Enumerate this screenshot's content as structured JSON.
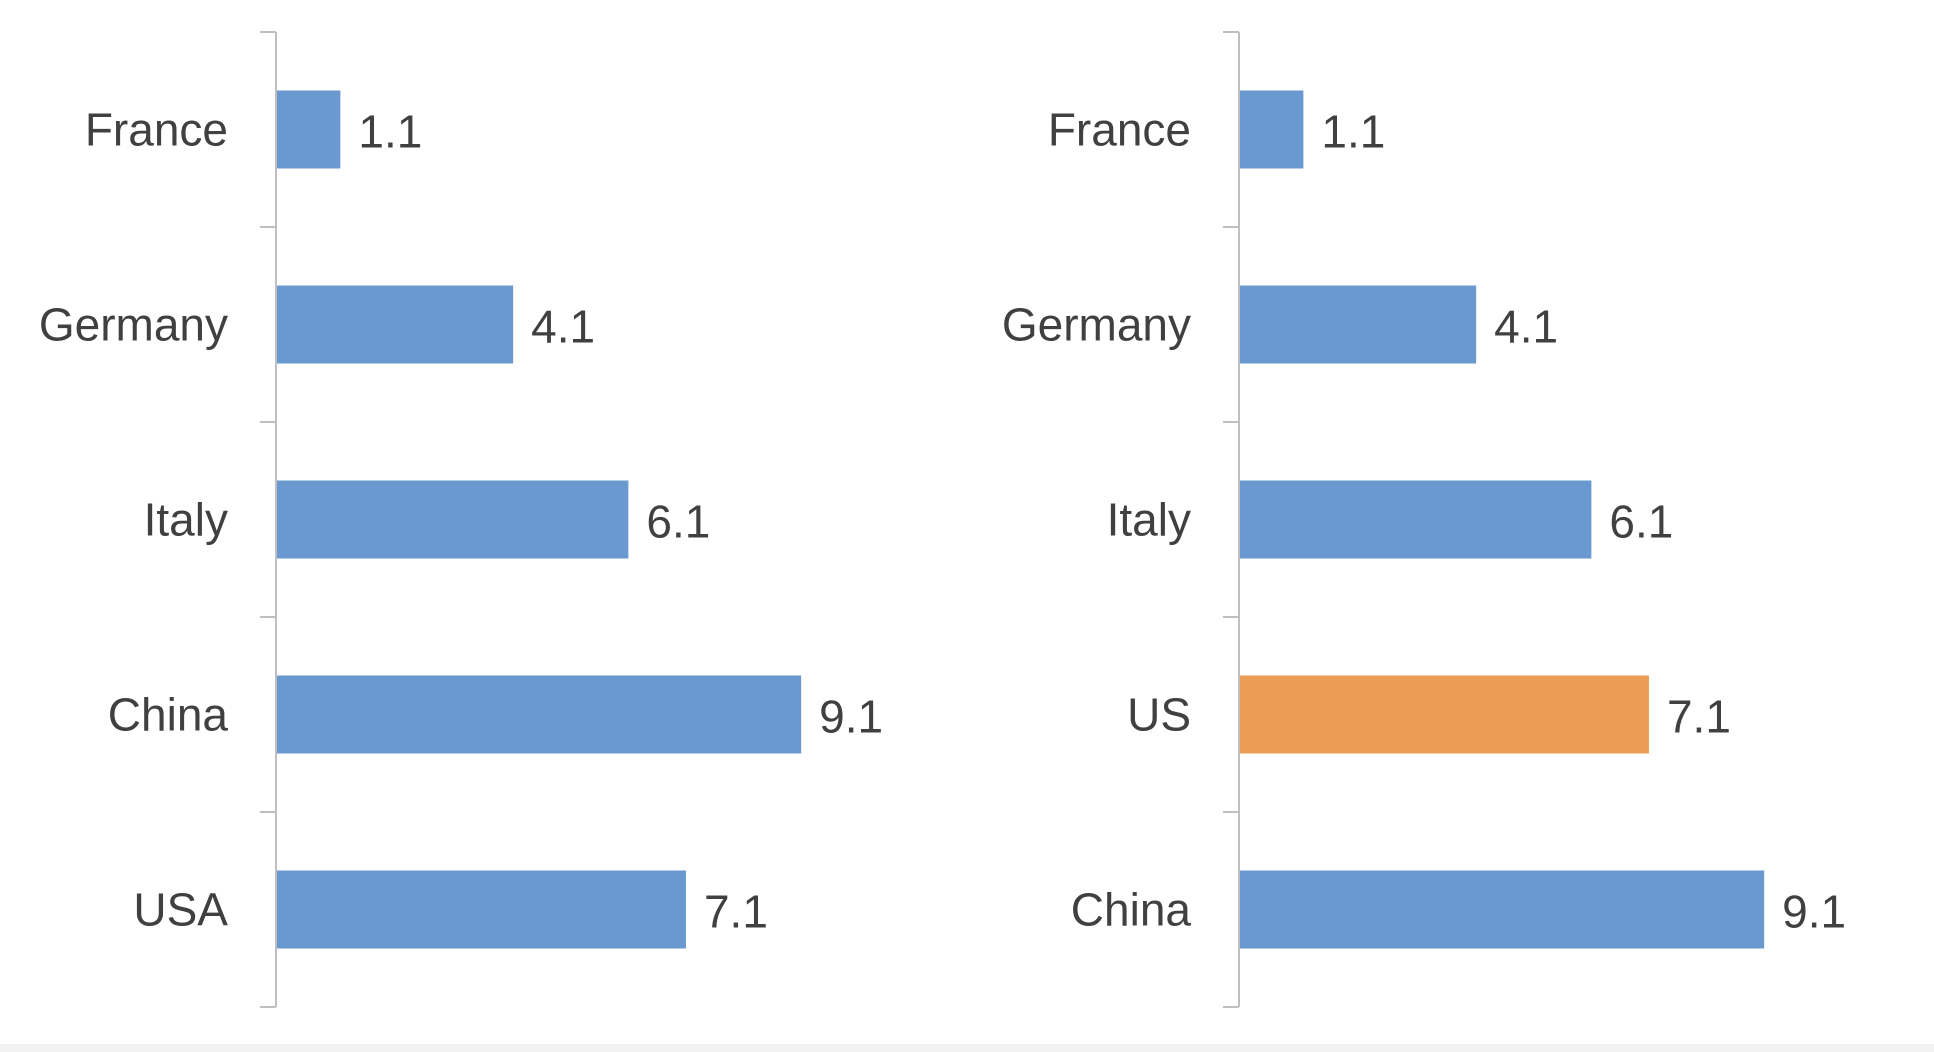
{
  "chart_data": [
    {
      "type": "bar",
      "orientation": "horizontal",
      "categories": [
        "France",
        "Germany",
        "Italy",
        "China",
        "USA"
      ],
      "values": [
        1.1,
        4.1,
        6.1,
        9.1,
        7.1
      ],
      "data_labels": [
        "1.1",
        "4.1",
        "6.1",
        "9.1",
        "7.1"
      ],
      "bar_colors": [
        "#6a99d0",
        "#6a99d0",
        "#6a99d0",
        "#6a99d0",
        "#6a99d0"
      ],
      "xlim": [
        0,
        10
      ],
      "grid": false,
      "legend": "none"
    },
    {
      "type": "bar",
      "orientation": "horizontal",
      "categories": [
        "France",
        "Germany",
        "Italy",
        "US",
        "China"
      ],
      "values": [
        1.1,
        4.1,
        6.1,
        7.1,
        9.1
      ],
      "data_labels": [
        "1.1",
        "4.1",
        "6.1",
        "7.1",
        "9.1"
      ],
      "bar_colors": [
        "#6a99d0",
        "#6a99d0",
        "#6a99d0",
        "#eb9c56",
        "#6a99d0"
      ],
      "xlim": [
        0,
        10
      ],
      "grid": false,
      "legend": "none"
    }
  ],
  "colors": {
    "bar": "#6a99d0",
    "highlight": "#eb9c56",
    "axis": "#bfbfbf",
    "text": "#404040"
  }
}
